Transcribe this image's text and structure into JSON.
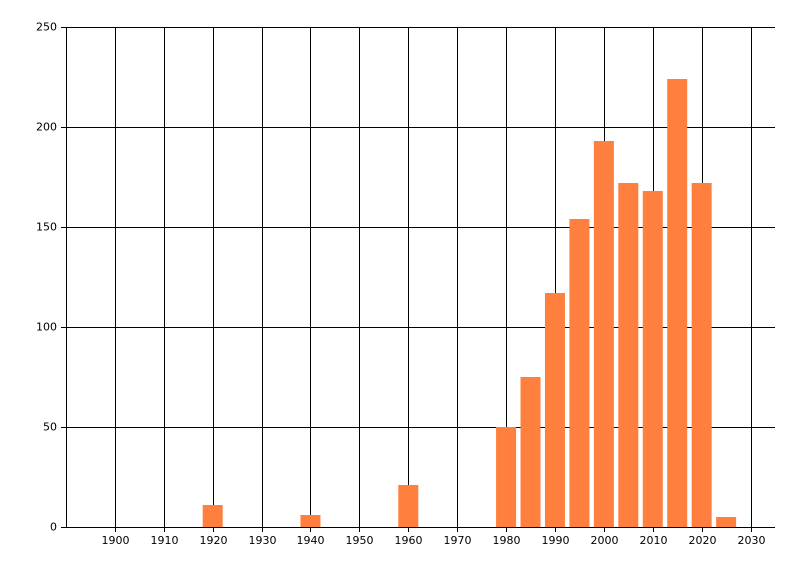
{
  "chart_data": {
    "type": "bar",
    "x": [
      1920,
      1940,
      1960,
      1980,
      1985,
      1990,
      1995,
      2000,
      2005,
      2010,
      2015,
      2020,
      2025
    ],
    "values": [
      11,
      6,
      21,
      50,
      75,
      117,
      154,
      193,
      172,
      168,
      224,
      172,
      5
    ],
    "color": "#ff7f3f",
    "xlim": [
      1890,
      2035
    ],
    "xticks": [
      1900,
      1910,
      1920,
      1930,
      1940,
      1950,
      1960,
      1970,
      1980,
      1990,
      2000,
      2010,
      2020,
      2030
    ],
    "ylim": [
      0,
      250
    ],
    "yticks": [
      0,
      50,
      100,
      150,
      200,
      250
    ],
    "grid": true
  }
}
